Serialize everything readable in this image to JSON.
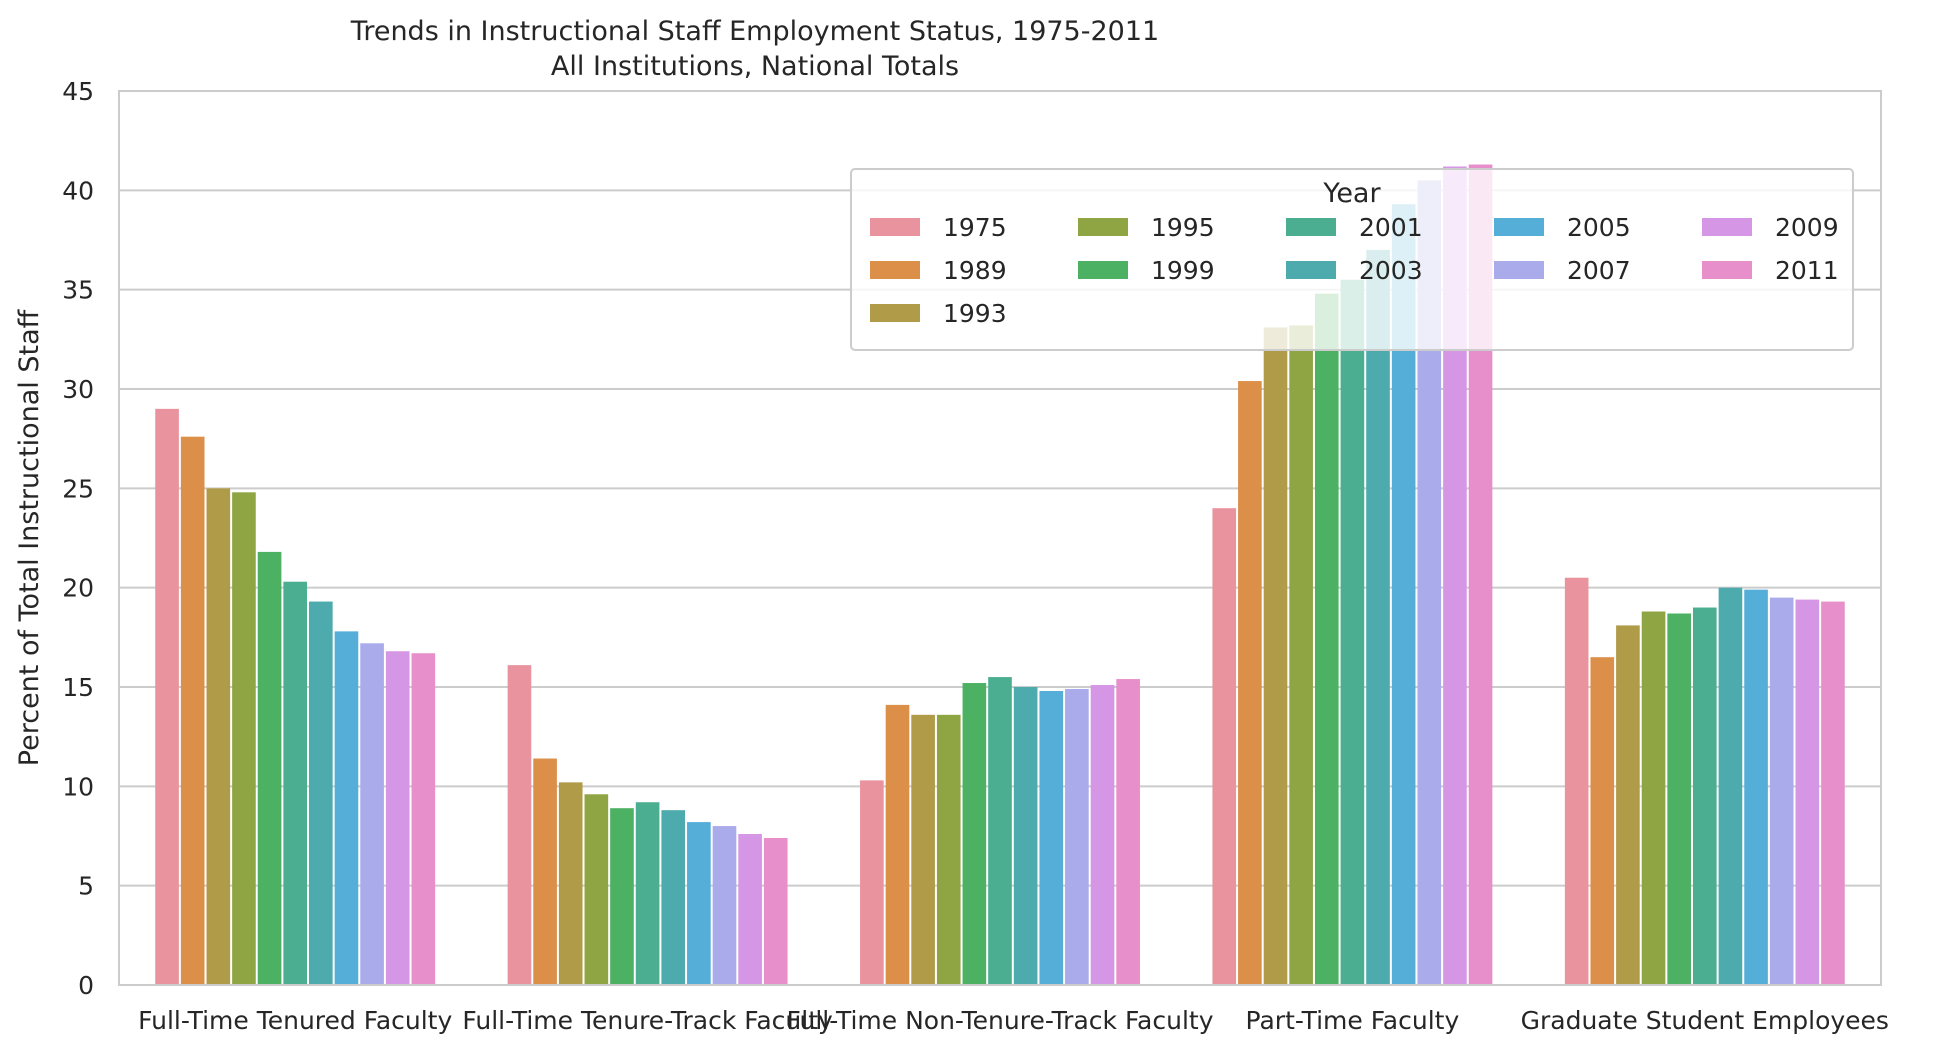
{
  "chart_data": {
    "type": "bar",
    "title": "Trends in Instructional Staff Employment Status, 1975-2011",
    "subtitle": "All Institutions, National Totals",
    "xlabel": "",
    "ylabel": "Percent of Total Instructional Staff",
    "ylim": [
      0,
      45
    ],
    "yticks": [
      "0",
      "5",
      "10",
      "15",
      "20",
      "25",
      "30",
      "35",
      "40",
      "45"
    ],
    "grid": "horizontal",
    "legend": {
      "title": "Year",
      "placement": "upper right",
      "columns": 5
    },
    "categories": [
      "Full-Time Tenured Faculty",
      "Full-Time Tenure-Track Faculty",
      "Full-Time Non-Tenure-Track Faculty",
      "Part-Time Faculty",
      "Graduate Student Employees"
    ],
    "series": [
      {
        "name": "1975",
        "color": "#e8939d",
        "values": [
          29.0,
          16.1,
          10.3,
          24.0,
          20.5
        ]
      },
      {
        "name": "1989",
        "color": "#dc8f49",
        "values": [
          27.6,
          11.4,
          14.1,
          30.4,
          16.5
        ]
      },
      {
        "name": "1993",
        "color": "#b09b49",
        "values": [
          25.0,
          10.2,
          13.6,
          33.1,
          18.1
        ]
      },
      {
        "name": "1995",
        "color": "#8fa544",
        "values": [
          24.8,
          9.6,
          13.6,
          33.2,
          18.8
        ]
      },
      {
        "name": "1999",
        "color": "#4cb162",
        "values": [
          21.8,
          8.9,
          15.2,
          34.8,
          18.7
        ]
      },
      {
        "name": "2001",
        "color": "#4bae91",
        "values": [
          20.3,
          9.2,
          15.5,
          35.5,
          19.0
        ]
      },
      {
        "name": "2003",
        "color": "#4daaad",
        "values": [
          19.3,
          8.8,
          15.0,
          37.0,
          20.0
        ]
      },
      {
        "name": "2005",
        "color": "#55aed8",
        "values": [
          17.8,
          8.2,
          14.8,
          39.3,
          19.9
        ]
      },
      {
        "name": "2007",
        "color": "#a9abea",
        "values": [
          17.2,
          8.0,
          14.9,
          40.5,
          19.5
        ]
      },
      {
        "name": "2009",
        "color": "#d596e6",
        "values": [
          16.8,
          7.6,
          15.1,
          41.2,
          19.4
        ]
      },
      {
        "name": "2011",
        "color": "#e78fcb",
        "values": [
          16.7,
          7.4,
          15.4,
          41.3,
          19.3
        ]
      }
    ]
  }
}
